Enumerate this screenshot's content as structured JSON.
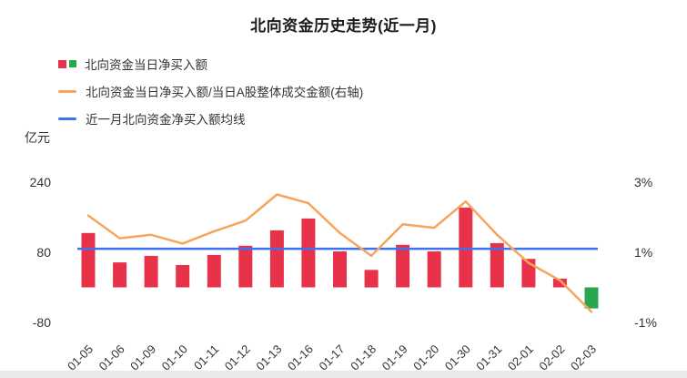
{
  "chart_data": {
    "type": "bar",
    "title": "北向资金历史走势(近一月)",
    "unit_label": "亿元",
    "categories": [
      "01-05",
      "01-06",
      "01-09",
      "01-10",
      "01-11",
      "01-12",
      "01-13",
      "01-16",
      "01-17",
      "01-18",
      "01-19",
      "01-20",
      "01-30",
      "01-31",
      "02-01",
      "02-02",
      "02-03"
    ],
    "series": [
      {
        "name": "北向资金当日净买入额",
        "type": "bar",
        "axis": "left",
        "values": [
          124,
          57,
          72,
          51,
          74,
          95,
          130,
          157,
          82,
          40,
          97,
          82,
          182,
          101,
          65,
          20,
          -48
        ],
        "positive_color": "#e73249",
        "negative_color": "#27a84e"
      },
      {
        "name": "北向资金当日净买入额/当日A股整体成交金额(右轴)",
        "type": "line",
        "axis": "right",
        "values": [
          2.05,
          1.4,
          1.5,
          1.25,
          1.6,
          1.9,
          2.65,
          2.4,
          1.55,
          0.9,
          1.8,
          1.7,
          2.45,
          1.5,
          0.7,
          0.2,
          -0.7
        ],
        "color": "#f7a45c"
      },
      {
        "name": "近一月北向资金净买入额均线",
        "type": "line",
        "axis": "left",
        "value": 88,
        "color": "#3e70f2"
      }
    ],
    "left_axis": {
      "ticks": [
        {
          "label": "240",
          "value": 240
        },
        {
          "label": "80",
          "value": 80
        },
        {
          "label": "-80",
          "value": -80
        }
      ],
      "min": -80,
      "max": 240
    },
    "right_axis": {
      "ticks": [
        {
          "label": "3%",
          "value": 3
        },
        {
          "label": "1%",
          "value": 1
        },
        {
          "label": "-1%",
          "value": -1
        }
      ],
      "min": -1,
      "max": 3
    },
    "grid": "off",
    "legend_position": "top-left"
  }
}
